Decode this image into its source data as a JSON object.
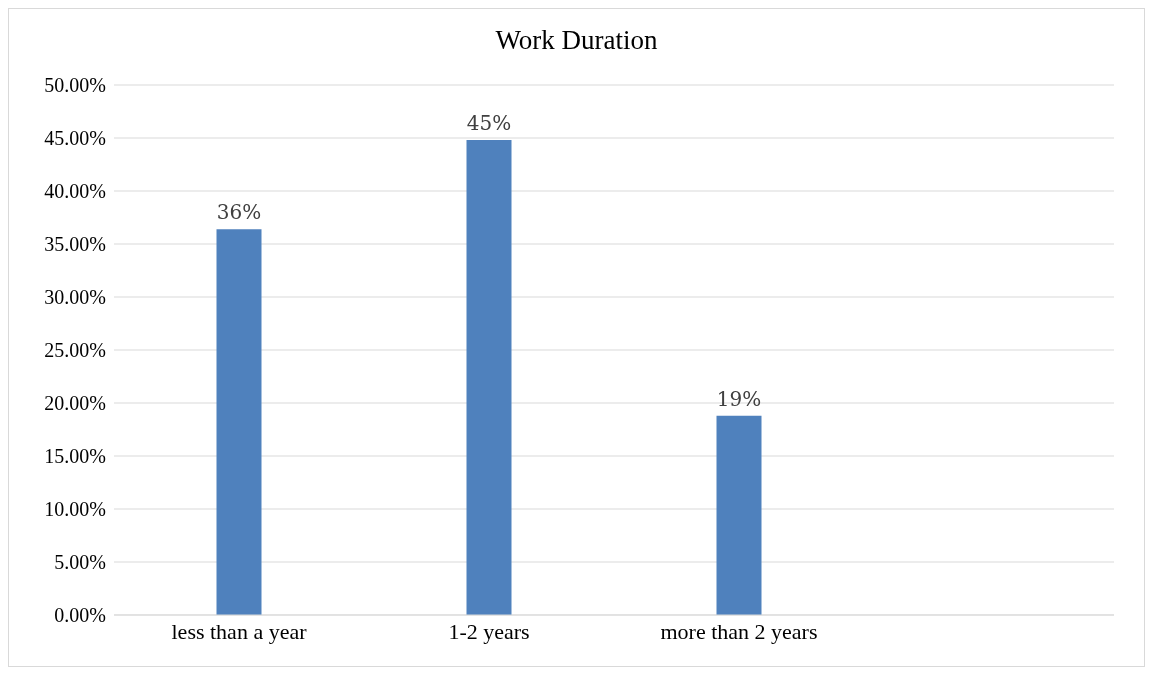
{
  "chart_data": {
    "type": "bar",
    "title": "Work Duration",
    "categories": [
      "less than a year",
      "1-2 years",
      "more than 2 years",
      null
    ],
    "values": [
      36.4,
      44.8,
      18.8,
      null
    ],
    "value_labels": [
      "36%",
      "45%",
      "19%",
      null
    ],
    "color": "#4f81bd",
    "ylim": [
      0,
      50
    ],
    "yticks": [
      {
        "value": 0,
        "label": "0.00%"
      },
      {
        "value": 5,
        "label": "5.00%"
      },
      {
        "value": 10,
        "label": "10.00%"
      },
      {
        "value": 15,
        "label": "15.00%"
      },
      {
        "value": 20,
        "label": "20.00%"
      },
      {
        "value": 25,
        "label": "25.00%"
      },
      {
        "value": 30,
        "label": "30.00%"
      },
      {
        "value": 35,
        "label": "35.00%"
      },
      {
        "value": 40,
        "label": "40.00%"
      },
      {
        "value": 45,
        "label": "45.00%"
      },
      {
        "value": 50,
        "label": "50.00%"
      }
    ],
    "grid": "y",
    "legend": false
  }
}
